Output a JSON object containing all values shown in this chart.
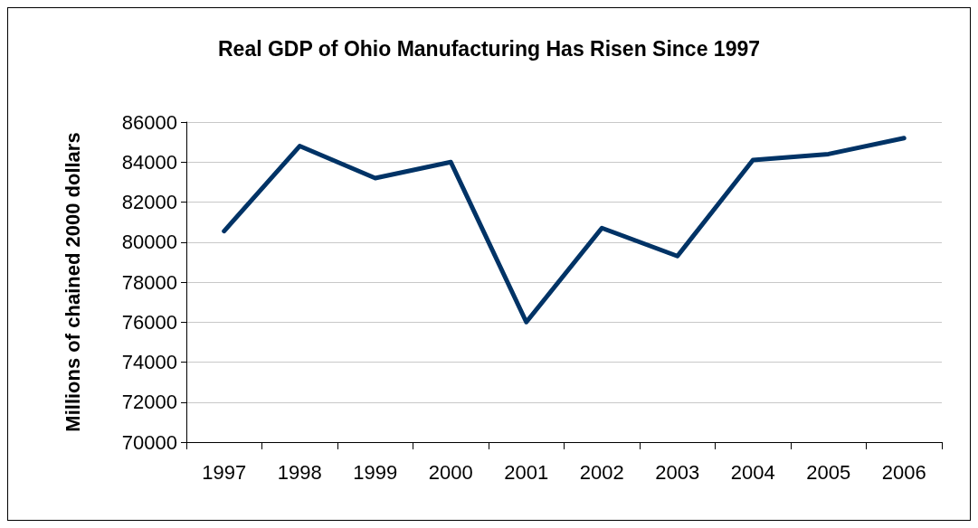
{
  "chart_data": {
    "type": "line",
    "title": "Real GDP of Ohio Manufacturing Has Risen Since 1997",
    "ylabel": "Millions of chained 2000 dollars",
    "categories": [
      "1997",
      "1998",
      "1999",
      "2000",
      "2001",
      "2002",
      "2003",
      "2004",
      "2005",
      "2006"
    ],
    "series": [
      {
        "color": "#003366",
        "values": [
          80550,
          84800,
          83200,
          84000,
          76000,
          80700,
          79300,
          84100,
          84400,
          85200
        ]
      }
    ],
    "ylim": [
      70000,
      86000
    ],
    "yticks": [
      70000,
      72000,
      74000,
      76000,
      78000,
      80000,
      82000,
      84000,
      86000
    ],
    "grid": "y",
    "marker": "none",
    "line_style": "solid"
  }
}
